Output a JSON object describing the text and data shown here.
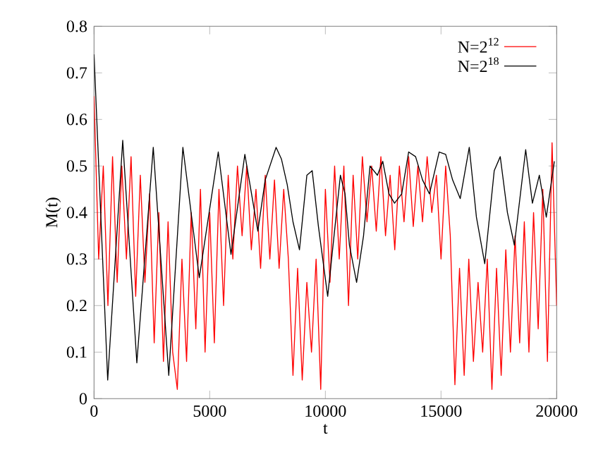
{
  "chart_data": {
    "type": "line",
    "xlabel": "t",
    "ylabel": "M(t)",
    "xlim": [
      0,
      20000
    ],
    "ylim": [
      0,
      0.8
    ],
    "xticks": [
      0,
      5000,
      10000,
      15000,
      20000
    ],
    "yticks": [
      0,
      0.1,
      0.2,
      0.3,
      0.4,
      0.5,
      0.6,
      0.7,
      0.8
    ],
    "legend": "top right",
    "grid": false,
    "marker": "none",
    "line_style": "solid",
    "series": [
      {
        "name": "N=2$^{12}$",
        "color": "#ff0000",
        "x": [
          0,
          200,
          400,
          600,
          800,
          1000,
          1200,
          1400,
          1600,
          1800,
          2000,
          2200,
          2400,
          2600,
          2800,
          3000,
          3200,
          3400,
          3600,
          3800,
          4000,
          4200,
          4400,
          4600,
          4800,
          5000,
          5200,
          5400,
          5600,
          5800,
          6000,
          6200,
          6400,
          6600,
          6800,
          7000,
          7200,
          7400,
          7600,
          7800,
          8000,
          8200,
          8400,
          8600,
          8800,
          9000,
          9200,
          9400,
          9600,
          9800,
          10000,
          10200,
          10400,
          10600,
          10800,
          11000,
          11200,
          11400,
          11600,
          11800,
          12000,
          12200,
          12400,
          12600,
          12800,
          13000,
          13200,
          13400,
          13600,
          13800,
          14000,
          14200,
          14400,
          14600,
          14800,
          15000,
          15200,
          15400,
          15600,
          15800,
          16000,
          16200,
          16400,
          16600,
          16800,
          17000,
          17200,
          17400,
          17600,
          17800,
          18000,
          18200,
          18400,
          18600,
          18800,
          19000,
          19200,
          19400,
          19600,
          19800,
          20000
        ],
        "values": [
          0.65,
          0.3,
          0.5,
          0.2,
          0.52,
          0.25,
          0.5,
          0.3,
          0.52,
          0.22,
          0.48,
          0.25,
          0.44,
          0.12,
          0.4,
          0.08,
          0.38,
          0.1,
          0.02,
          0.3,
          0.08,
          0.4,
          0.15,
          0.45,
          0.1,
          0.4,
          0.12,
          0.45,
          0.2,
          0.48,
          0.3,
          0.5,
          0.35,
          0.5,
          0.32,
          0.45,
          0.28,
          0.48,
          0.3,
          0.47,
          0.28,
          0.45,
          0.3,
          0.05,
          0.28,
          0.04,
          0.25,
          0.1,
          0.3,
          0.02,
          0.45,
          0.25,
          0.5,
          0.3,
          0.5,
          0.2,
          0.48,
          0.3,
          0.52,
          0.38,
          0.5,
          0.36,
          0.52,
          0.35,
          0.48,
          0.32,
          0.5,
          0.38,
          0.52,
          0.37,
          0.5,
          0.38,
          0.52,
          0.4,
          0.48,
          0.3,
          0.5,
          0.35,
          0.03,
          0.28,
          0.05,
          0.3,
          0.08,
          0.25,
          0.1,
          0.3,
          0.02,
          0.28,
          0.05,
          0.32,
          0.1,
          0.35,
          0.12,
          0.38,
          0.1,
          0.4,
          0.15,
          0.45,
          0.08,
          0.55,
          0.2
        ]
      },
      {
        "name": "N=2$^{18}$",
        "color": "#000000",
        "x": [
          0,
          590,
          1240,
          1850,
          2560,
          3230,
          3840,
          4550,
          5370,
          5920,
          6520,
          7080,
          7400,
          7870,
          8100,
          8350,
          8600,
          8880,
          9200,
          9430,
          9700,
          10100,
          10650,
          10850,
          11040,
          11350,
          11650,
          11930,
          12250,
          12480,
          12750,
          12990,
          13300,
          13600,
          13900,
          14200,
          14500,
          14920,
          15200,
          15500,
          15830,
          16220,
          16530,
          16890,
          17300,
          17560,
          17870,
          18170,
          18660,
          18950,
          19250,
          19550,
          19900
        ],
        "values": [
          0.74,
          0.04,
          0.555,
          0.077,
          0.54,
          0.05,
          0.54,
          0.26,
          0.53,
          0.31,
          0.525,
          0.36,
          0.47,
          0.54,
          0.515,
          0.46,
          0.38,
          0.32,
          0.48,
          0.49,
          0.37,
          0.22,
          0.48,
          0.44,
          0.33,
          0.25,
          0.35,
          0.5,
          0.48,
          0.51,
          0.44,
          0.42,
          0.44,
          0.53,
          0.52,
          0.47,
          0.44,
          0.53,
          0.525,
          0.47,
          0.43,
          0.54,
          0.39,
          0.29,
          0.49,
          0.52,
          0.4,
          0.33,
          0.535,
          0.42,
          0.48,
          0.39,
          0.51
        ]
      }
    ]
  }
}
